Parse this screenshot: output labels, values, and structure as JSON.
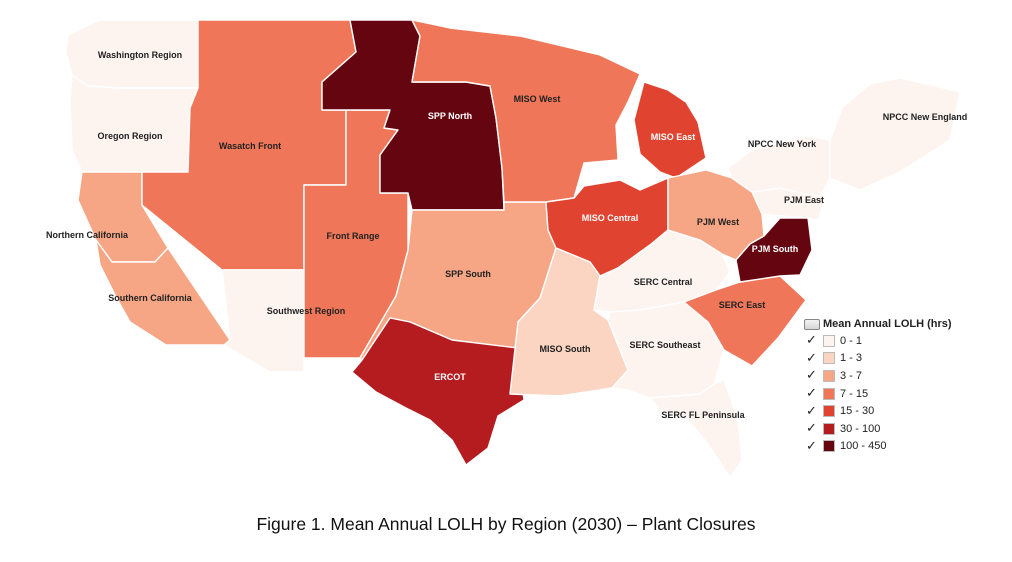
{
  "caption": "Figure 1. Mean Annual LOLH by Region (2030) – Plant Closures",
  "legend": {
    "title": "Mean Annual LOLH (hrs)",
    "layer_icon": "layer-icon",
    "check_icon": "checkmark-icon",
    "classes": [
      {
        "label": "0 - 1",
        "color": "#fdf4f0"
      },
      {
        "label": "1 - 3",
        "color": "#fbd4c2"
      },
      {
        "label": "3 - 7",
        "color": "#f6a684"
      },
      {
        "label": "7 - 15",
        "color": "#ef7658"
      },
      {
        "label": "15 - 30",
        "color": "#e0432f"
      },
      {
        "label": "30 - 100",
        "color": "#b51c1f"
      },
      {
        "label": "100 - 450",
        "color": "#650510"
      }
    ]
  },
  "regions": [
    {
      "name": "Washington Region",
      "lolh_class": "0 - 1"
    },
    {
      "name": "Oregon Region",
      "lolh_class": "0 - 1"
    },
    {
      "name": "Northern California",
      "lolh_class": "3 - 7"
    },
    {
      "name": "Southern California",
      "lolh_class": "3 - 7"
    },
    {
      "name": "Wasatch Front",
      "lolh_class": "7 - 15"
    },
    {
      "name": "Southwest Region",
      "lolh_class": "0 - 1"
    },
    {
      "name": "Front Range",
      "lolh_class": "7 - 15"
    },
    {
      "name": "SPP North",
      "lolh_class": "100 - 450"
    },
    {
      "name": "SPP South",
      "lolh_class": "3 - 7"
    },
    {
      "name": "ERCOT",
      "lolh_class": "30 - 100"
    },
    {
      "name": "MISO West",
      "lolh_class": "7 - 15"
    },
    {
      "name": "MISO East",
      "lolh_class": "15 - 30"
    },
    {
      "name": "MISO Central",
      "lolh_class": "15 - 30"
    },
    {
      "name": "MISO South",
      "lolh_class": "1 - 3"
    },
    {
      "name": "SERC Central",
      "lolh_class": "0 - 1"
    },
    {
      "name": "SERC Southeast",
      "lolh_class": "0 - 1"
    },
    {
      "name": "SERC East",
      "lolh_class": "7 - 15"
    },
    {
      "name": "SERC FL Peninsula",
      "lolh_class": "0 - 1"
    },
    {
      "name": "PJM West",
      "lolh_class": "3 - 7"
    },
    {
      "name": "PJM East",
      "lolh_class": "0 - 1"
    },
    {
      "name": "PJM South",
      "lolh_class": "100 - 450"
    },
    {
      "name": "NPCC New York",
      "lolh_class": "0 - 1"
    },
    {
      "name": "NPCC New England",
      "lolh_class": "0 - 1"
    }
  ]
}
